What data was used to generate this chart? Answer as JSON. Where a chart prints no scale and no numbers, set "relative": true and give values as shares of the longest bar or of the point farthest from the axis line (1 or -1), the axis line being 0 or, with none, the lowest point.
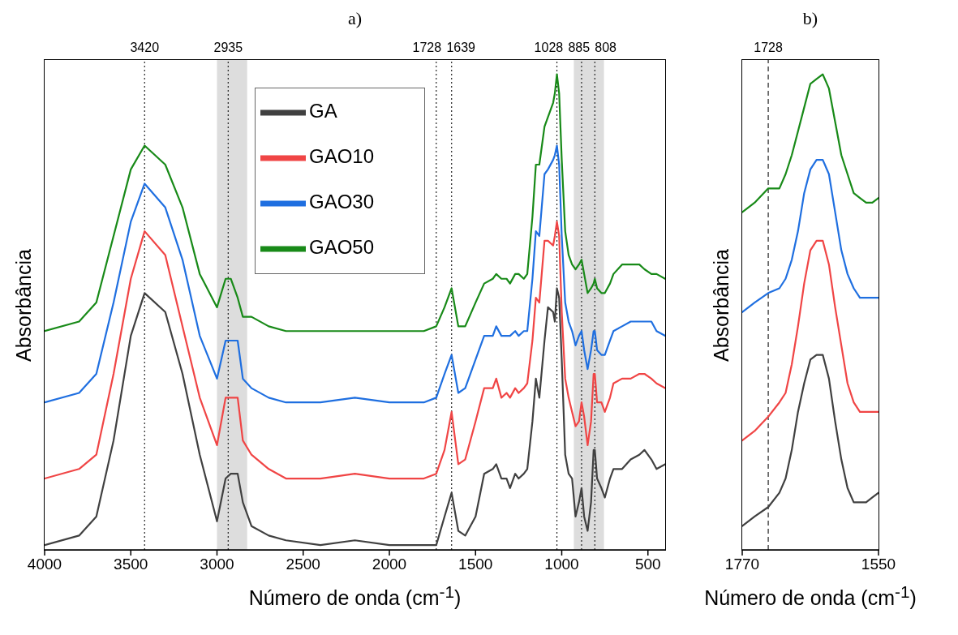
{
  "chart_data": [
    {
      "type": "line",
      "title": "a)",
      "xlabel": "Número de onda (cm$^{-1}$)",
      "ylabel": "Absorbância",
      "relative": true,
      "legend": "top",
      "xlim": [
        4000,
        400
      ],
      "xticks": [
        4000,
        3500,
        3000,
        2500,
        2000,
        1500,
        1000,
        500
      ],
      "x": [
        4000,
        3800,
        3700,
        3600,
        3500,
        3420,
        3300,
        3200,
        3100,
        3000,
        2950,
        2920,
        2880,
        2850,
        2800,
        2700,
        2600,
        2400,
        2200,
        2000,
        1900,
        1800,
        1728,
        1680,
        1639,
        1600,
        1560,
        1500,
        1450,
        1400,
        1380,
        1350,
        1320,
        1300,
        1270,
        1250,
        1220,
        1200,
        1170,
        1150,
        1130,
        1100,
        1080,
        1050,
        1040,
        1028,
        1015,
        1000,
        980,
        960,
        940,
        920,
        900,
        885,
        870,
        850,
        830,
        815,
        808,
        795,
        770,
        750,
        720,
        700,
        650,
        600,
        550,
        520,
        480,
        450,
        400
      ],
      "series": [
        {
          "name": "GA",
          "color": "#404040",
          "values": [
            0.01,
            0.03,
            0.07,
            0.23,
            0.45,
            0.54,
            0.5,
            0.37,
            0.2,
            0.06,
            0.15,
            0.16,
            0.16,
            0.1,
            0.05,
            0.03,
            0.02,
            0.01,
            0.02,
            0.01,
            0.01,
            0.01,
            0.01,
            0.07,
            0.12,
            0.04,
            0.03,
            0.07,
            0.16,
            0.17,
            0.18,
            0.15,
            0.15,
            0.13,
            0.16,
            0.15,
            0.16,
            0.17,
            0.27,
            0.36,
            0.32,
            0.44,
            0.51,
            0.5,
            0.48,
            0.55,
            0.53,
            0.4,
            0.2,
            0.16,
            0.15,
            0.07,
            0.1,
            0.13,
            0.07,
            0.04,
            0.1,
            0.21,
            0.21,
            0.15,
            0.13,
            0.11,
            0.15,
            0.17,
            0.17,
            0.19,
            0.2,
            0.21,
            0.19,
            0.17,
            0.18
          ]
        },
        {
          "name": "GAO10",
          "color": "#f04545",
          "values": [
            0.15,
            0.17,
            0.2,
            0.37,
            0.57,
            0.67,
            0.62,
            0.47,
            0.32,
            0.22,
            0.32,
            0.32,
            0.32,
            0.23,
            0.2,
            0.17,
            0.15,
            0.15,
            0.16,
            0.15,
            0.15,
            0.15,
            0.16,
            0.21,
            0.29,
            0.18,
            0.19,
            0.27,
            0.34,
            0.34,
            0.36,
            0.32,
            0.33,
            0.32,
            0.34,
            0.33,
            0.34,
            0.35,
            0.44,
            0.53,
            0.52,
            0.65,
            0.65,
            0.64,
            0.66,
            0.69,
            0.66,
            0.5,
            0.36,
            0.32,
            0.29,
            0.26,
            0.27,
            0.31,
            0.28,
            0.22,
            0.27,
            0.37,
            0.37,
            0.31,
            0.31,
            0.29,
            0.32,
            0.35,
            0.36,
            0.36,
            0.37,
            0.37,
            0.36,
            0.35,
            0.34
          ]
        },
        {
          "name": "GAO30",
          "color": "#1f6fe0",
          "values": [
            0.31,
            0.33,
            0.37,
            0.52,
            0.69,
            0.77,
            0.72,
            0.61,
            0.45,
            0.36,
            0.44,
            0.44,
            0.44,
            0.36,
            0.34,
            0.32,
            0.31,
            0.31,
            0.32,
            0.31,
            0.31,
            0.31,
            0.32,
            0.37,
            0.41,
            0.33,
            0.34,
            0.4,
            0.45,
            0.45,
            0.47,
            0.45,
            0.45,
            0.45,
            0.46,
            0.45,
            0.46,
            0.46,
            0.57,
            0.67,
            0.66,
            0.79,
            0.8,
            0.82,
            0.83,
            0.85,
            0.81,
            0.66,
            0.52,
            0.48,
            0.46,
            0.43,
            0.45,
            0.46,
            0.42,
            0.38,
            0.42,
            0.46,
            0.46,
            0.42,
            0.41,
            0.41,
            0.44,
            0.46,
            0.47,
            0.48,
            0.48,
            0.48,
            0.48,
            0.46,
            0.45
          ]
        },
        {
          "name": "GAO50",
          "color": "#188a18",
          "values": [
            0.46,
            0.48,
            0.52,
            0.66,
            0.8,
            0.85,
            0.81,
            0.72,
            0.58,
            0.51,
            0.57,
            0.57,
            0.53,
            0.49,
            0.49,
            0.47,
            0.46,
            0.46,
            0.46,
            0.46,
            0.46,
            0.46,
            0.47,
            0.51,
            0.55,
            0.47,
            0.47,
            0.52,
            0.56,
            0.57,
            0.58,
            0.57,
            0.57,
            0.56,
            0.58,
            0.58,
            0.57,
            0.58,
            0.7,
            0.81,
            0.81,
            0.89,
            0.91,
            0.94,
            0.96,
            1,
            0.96,
            0.82,
            0.67,
            0.62,
            0.6,
            0.59,
            0.6,
            0.61,
            0.58,
            0.54,
            0.55,
            0.56,
            0.57,
            0.55,
            0.54,
            0.54,
            0.56,
            0.58,
            0.6,
            0.6,
            0.6,
            0.59,
            0.58,
            0.58,
            0.57
          ]
        }
      ],
      "ref_lines": [
        {
          "axis": "x",
          "value": 3420,
          "label": "3420",
          "line_style": "dotted",
          "color": "#222222"
        },
        {
          "axis": "x",
          "value": 2935,
          "label": "2935",
          "line_style": "dotted",
          "color": "#222222"
        },
        {
          "axis": "x",
          "value": 1728,
          "label": "1728",
          "line_style": "dotted",
          "color": "#222222"
        },
        {
          "axis": "x",
          "value": 1639,
          "label": "1639",
          "line_style": "dotted",
          "color": "#222222"
        },
        {
          "axis": "x",
          "value": 1028,
          "label": "1028",
          "line_style": "dotted",
          "color": "#222222"
        },
        {
          "axis": "x",
          "value": 885,
          "label": "885",
          "line_style": "dotted",
          "color": "#222222"
        },
        {
          "axis": "x",
          "value": 808,
          "label": "808",
          "line_style": "dotted",
          "color": "#222222"
        }
      ],
      "bands": [
        {
          "axis": "x",
          "from": 3000,
          "to": 2825,
          "color": "#dddddd"
        },
        {
          "axis": "x",
          "from": 930,
          "to": 755,
          "color": "#dddddd"
        }
      ]
    },
    {
      "type": "line",
      "title": "b)",
      "xlabel": "Número de onda (cm$^{-1}$)",
      "ylabel": "Absorbância",
      "relative": true,
      "xlim": [
        1770,
        1550
      ],
      "xticks": [
        1770,
        1550
      ],
      "x": [
        1770,
        1750,
        1728,
        1710,
        1700,
        1690,
        1680,
        1670,
        1660,
        1650,
        1640,
        1630,
        1620,
        1610,
        1600,
        1590,
        1580,
        1570,
        1560,
        1550
      ],
      "series": [
        {
          "color": "#404040",
          "values": [
            0.05,
            0.07,
            0.09,
            0.12,
            0.15,
            0.21,
            0.29,
            0.35,
            0.4,
            0.41,
            0.41,
            0.36,
            0.27,
            0.19,
            0.13,
            0.1,
            0.1,
            0.1,
            0.11,
            0.12
          ]
        },
        {
          "color": "#f04545",
          "values": [
            0.23,
            0.25,
            0.28,
            0.31,
            0.33,
            0.39,
            0.47,
            0.56,
            0.63,
            0.65,
            0.65,
            0.6,
            0.51,
            0.43,
            0.35,
            0.31,
            0.29,
            0.29,
            0.29,
            0.29
          ]
        },
        {
          "color": "#1f6fe0",
          "values": [
            0.5,
            0.52,
            0.54,
            0.55,
            0.57,
            0.61,
            0.67,
            0.75,
            0.8,
            0.82,
            0.82,
            0.79,
            0.71,
            0.63,
            0.58,
            0.55,
            0.53,
            0.53,
            0.53,
            0.53
          ]
        },
        {
          "color": "#188a18",
          "values": [
            0.71,
            0.73,
            0.76,
            0.76,
            0.79,
            0.83,
            0.88,
            0.93,
            0.98,
            0.99,
            1,
            0.97,
            0.9,
            0.83,
            0.79,
            0.75,
            0.74,
            0.73,
            0.73,
            0.74
          ]
        }
      ],
      "ref_lines": [
        {
          "axis": "x",
          "value": 1728,
          "label": "1728",
          "line_style": "dashed",
          "color": "#222222"
        }
      ]
    }
  ]
}
